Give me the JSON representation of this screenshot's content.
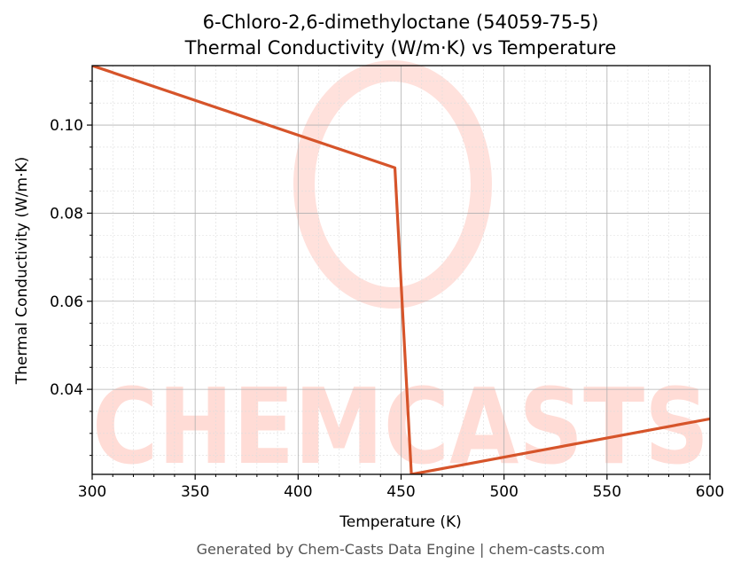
{
  "chart_data": {
    "type": "line",
    "title": "6-Chloro-2,6-dimethyloctane (54059-75-5)",
    "subtitle": "Thermal Conductivity (W/m·K) vs Temperature",
    "xlabel": "Temperature (K)",
    "ylabel": "Thermal Conductivity (W/m·K)",
    "xlim": [
      300,
      600
    ],
    "ylim": [
      0.0207,
      0.1135
    ],
    "x_ticks": [
      300,
      350,
      400,
      450,
      500,
      550,
      600
    ],
    "x_tick_labels": [
      "300",
      "350",
      "400",
      "450",
      "500",
      "550",
      "600"
    ],
    "y_ticks": [
      0.04,
      0.06,
      0.08,
      0.1
    ],
    "y_tick_labels": [
      "0.04",
      "0.06",
      "0.08",
      "0.10"
    ],
    "grid": true,
    "series": [
      {
        "color": "#d6542a",
        "x": [
          300,
          447,
          455,
          600
        ],
        "y": [
          0.1135,
          0.0903,
          0.0207,
          0.0333
        ]
      }
    ]
  },
  "watermark": {
    "text": "CHEMCASTS",
    "color": "#ffdcd6"
  },
  "footer": {
    "text": "Generated by Chem-Casts Data Engine | chem-casts.com"
  }
}
